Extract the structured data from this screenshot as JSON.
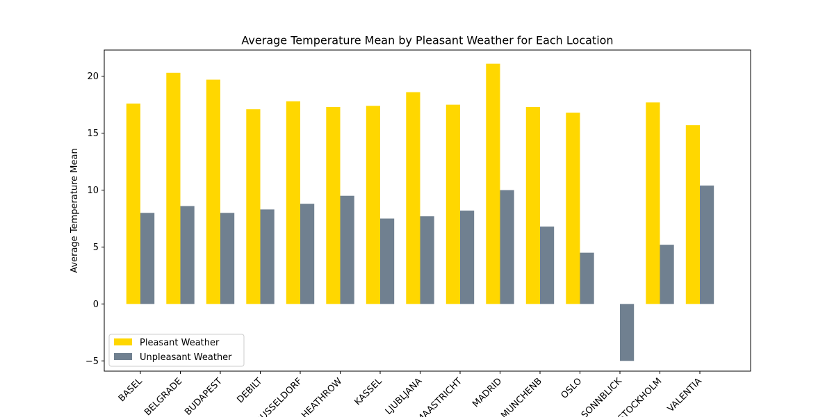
{
  "chart_data": {
    "type": "bar",
    "title": "Average Temperature Mean by Pleasant Weather for Each Location",
    "xlabel": "",
    "ylabel": "Average Temperature Mean",
    "categories": [
      "BASEL",
      "BELGRADE",
      "BUDAPEST",
      "DEBILT",
      "DUSSELDORF",
      "HEATHROW",
      "KASSEL",
      "LJUBLJANA",
      "MAASTRICHT",
      "MADRID",
      "MUNCHENB",
      "OSLO",
      "SONNBLICK",
      "STOCKHOLM",
      "VALENTIA"
    ],
    "series": [
      {
        "name": "Pleasant Weather",
        "color": "#FFD700",
        "values": [
          17.6,
          20.3,
          19.7,
          17.1,
          17.8,
          17.3,
          17.4,
          18.6,
          17.5,
          21.1,
          17.3,
          16.8,
          null,
          17.7,
          15.7
        ]
      },
      {
        "name": "Unpleasant Weather",
        "color": "#708090",
        "values": [
          8.0,
          8.6,
          8.0,
          8.3,
          8.8,
          9.5,
          7.5,
          7.7,
          8.2,
          10.0,
          6.8,
          4.5,
          -5.0,
          5.2,
          10.4
        ]
      }
    ],
    "ylim": [
      -5.9,
      22.3
    ],
    "yticks": [
      "−5",
      "0",
      "5",
      "10",
      "15",
      "20"
    ],
    "ytick_values": [
      -5,
      0,
      5,
      10,
      15,
      20
    ],
    "grid": false,
    "legend_position": "lower-left"
  }
}
